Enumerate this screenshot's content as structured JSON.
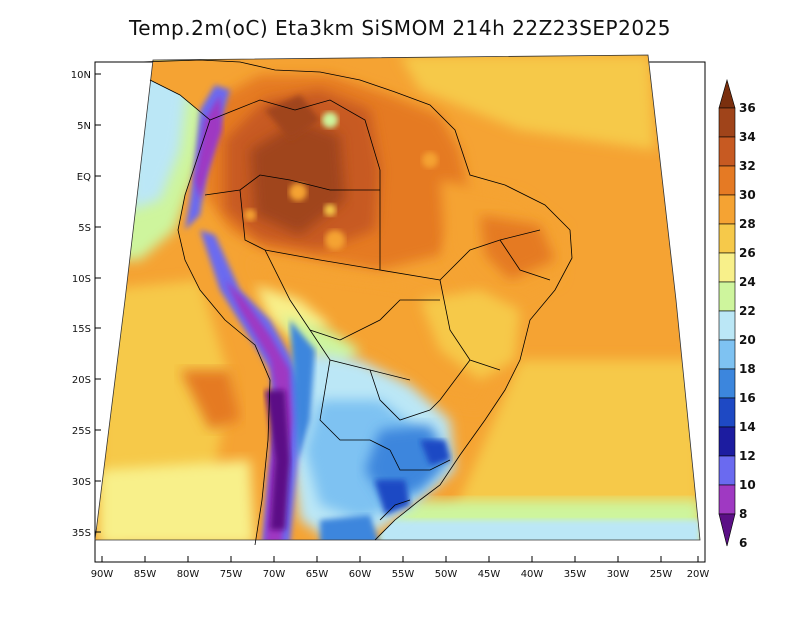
{
  "map": {
    "title": "Temp.2m(oC) Eta3km SiSMOM 214h 22Z23SEP2025",
    "lat_labels": [
      "10N",
      "5N",
      "EQ",
      "5S",
      "10S",
      "15S",
      "20S",
      "25S",
      "30S",
      "35S"
    ],
    "lon_labels": [
      "90W",
      "85W",
      "80W",
      "75W",
      "70W",
      "65W",
      "60W",
      "55W",
      "50W",
      "45W",
      "40W",
      "35W",
      "30W",
      "25W",
      "20W"
    ]
  },
  "colorbar": {
    "labels": [
      "36",
      "34",
      "32",
      "30",
      "28",
      "26",
      "24",
      "22",
      "20",
      "18",
      "16",
      "14",
      "12",
      "10",
      "8",
      "6"
    ],
    "colors": [
      "#7a2f0e",
      "#a0441a",
      "#c75a22",
      "#e57a24",
      "#f5a333",
      "#f6c94a",
      "#f8f08a",
      "#cef59d",
      "#bbe7f6",
      "#7ec2f2",
      "#3c86dd",
      "#1e49c4",
      "#1c1ca0",
      "#6a6af0",
      "#9f39c2",
      "#5b0f86"
    ]
  }
}
